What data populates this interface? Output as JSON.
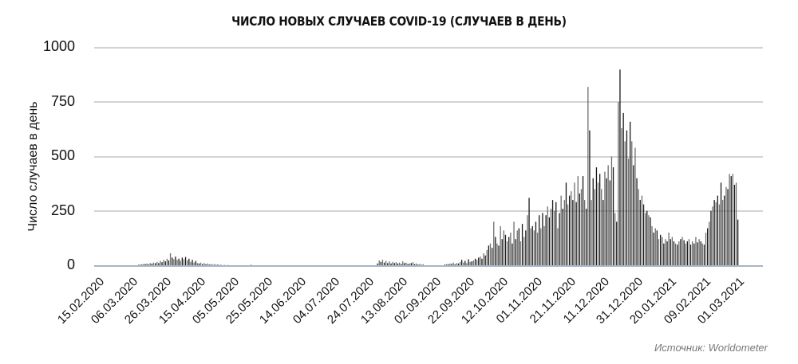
{
  "chart_data": {
    "type": "bar",
    "title": "ЧИСЛО НОВЫХ СЛУЧАЕВ COVID-19 (СЛУЧАЕВ В ДЕНЬ)",
    "xlabel": "",
    "ylabel": "Число случаев в день",
    "ylim": [
      0,
      1000
    ],
    "yticks": [
      "0",
      "250",
      "500",
      "750",
      "1000"
    ],
    "grid": true,
    "legend": null,
    "x_start": "15.02.2020",
    "x_tick_step_days": 20,
    "xticks": [
      "15.02.2020",
      "06.03.2020",
      "26.03.2020",
      "15.04.2020",
      "05.05.2020",
      "25.05.2020",
      "14.06.2020",
      "04.07.2020",
      "24.07.2020",
      "13.08.2020",
      "02.09.2020",
      "22.09.2020",
      "12.10.2020",
      "01.11.2020",
      "21.11.2020",
      "11.12.2020",
      "31.12.2020",
      "20.01.2021",
      "09.02.2021",
      "01.03.2021"
    ],
    "daily_segments": [
      {
        "from_day": 0,
        "values": [
          0,
          0,
          0,
          0,
          0,
          0,
          0,
          0,
          0,
          0,
          0,
          0,
          0,
          0,
          0,
          0,
          0,
          0,
          0,
          0,
          0,
          0,
          0,
          0,
          0,
          0,
          2,
          4,
          3,
          6,
          5,
          8,
          4,
          10,
          7,
          12,
          9,
          15,
          10,
          20,
          14,
          25,
          18,
          30,
          22,
          55,
          35,
          28,
          40,
          25,
          30,
          20,
          35,
          28,
          38,
          22,
          30,
          15,
          25,
          12,
          20,
          10,
          8,
          12,
          5,
          10,
          4,
          8,
          3,
          6,
          2,
          5,
          2,
          4,
          1,
          3,
          0,
          2,
          0,
          1
        ]
      },
      {
        "from_day": 80,
        "values": [
          0,
          0,
          0,
          0,
          0,
          0,
          0,
          0,
          0,
          0,
          0,
          0,
          0,
          3,
          0,
          0,
          0,
          0,
          0,
          0,
          0,
          0,
          0,
          0,
          0,
          0,
          0,
          0,
          0,
          0,
          0,
          0,
          0,
          0,
          0,
          0,
          0,
          0,
          0,
          0,
          0,
          0,
          0,
          0,
          0,
          0,
          0,
          0,
          0,
          0,
          0,
          0,
          0,
          0,
          0,
          0,
          0,
          0,
          0,
          0,
          0,
          0,
          0,
          0,
          0,
          0,
          0,
          0,
          0,
          0,
          0,
          0,
          0,
          0,
          0,
          0,
          0,
          0,
          0,
          0,
          0,
          0,
          0,
          0,
          0,
          0,
          0,
          0
        ]
      },
      {
        "from_day": 168,
        "values": [
          8,
          22,
          15,
          25,
          12,
          20,
          10,
          18,
          8,
          15,
          10,
          14,
          8,
          12,
          6,
          18,
          10,
          12,
          6,
          8,
          10,
          14,
          5,
          8,
          3,
          6,
          2,
          5,
          0,
          0,
          0,
          0,
          0,
          0,
          0,
          0,
          0,
          0,
          0,
          0,
          0,
          0,
          0,
          0,
          0,
          0,
          0,
          0
        ]
      },
      {
        "from_day": 208,
        "values": [
          3,
          5,
          4,
          8,
          6,
          12,
          4,
          10,
          8,
          15,
          25,
          12,
          20,
          10,
          28,
          15,
          18,
          22,
          30,
          25,
          35,
          40,
          30,
          55,
          45,
          70,
          90,
          100,
          80,
          200,
          130,
          100,
          90,
          180,
          120,
          160,
          140,
          110,
          130,
          150,
          100,
          200,
          120,
          160,
          170,
          110,
          190,
          130,
          160,
          230,
          310,
          170,
          180,
          160,
          200,
          150,
          230,
          170,
          240,
          180,
          230,
          270,
          220,
          260,
          300,
          250,
          290,
          170,
          240,
          320,
          260,
          300,
          380,
          280,
          320,
          340,
          300,
          380,
          290,
          410,
          330,
          350,
          410,
          300,
          260,
          820,
          620,
          300,
          400,
          350,
          450,
          380,
          420,
          350,
          300,
          430,
          400,
          460,
          390,
          500,
          450,
          240,
          200,
          750,
          900,
          630,
          700,
          570,
          620,
          490,
          660,
          570,
          460,
          540,
          400,
          350,
          300,
          320,
          280,
          240,
          250,
          230,
          220,
          180,
          150,
          170,
          160,
          120,
          140,
          130,
          100,
          120,
          110,
          150,
          120,
          130,
          110,
          100,
          95,
          110,
          120,
          130,
          115,
          100,
          110,
          120,
          95,
          110,
          100,
          130,
          105,
          120,
          110,
          100,
          95,
          150,
          170,
          200,
          250,
          270,
          300,
          290,
          320,
          280,
          380,
          300,
          320,
          360,
          350,
          420,
          410,
          420,
          370,
          380,
          210
        ]
      }
    ]
  },
  "axes": {
    "ylabel": "Число случаев в день",
    "yticks": [
      "1000",
      "750",
      "500",
      "250",
      "0"
    ]
  },
  "source": "Источник: Worldometer",
  "colors": {
    "bar_dark": "#1a1a1a",
    "bar_light": "#6e6e6e",
    "grid": "#d3d3d3",
    "baseline": "#a9b6c6"
  }
}
